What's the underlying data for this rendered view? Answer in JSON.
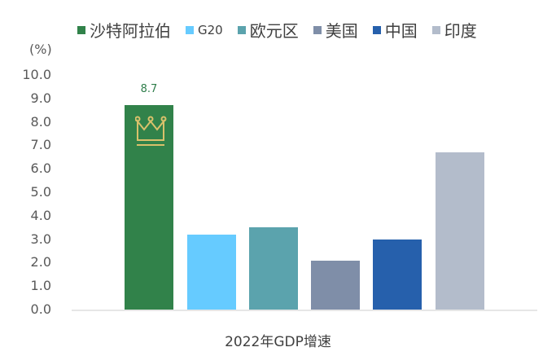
{
  "chart_data": {
    "type": "bar",
    "title": "",
    "xlabel": "2022年GDP增速",
    "ylabel": "(%)",
    "ylim": [
      0,
      10
    ],
    "yticks": [
      "0.0",
      "1.0",
      "2.0",
      "3.0",
      "4.0",
      "5.0",
      "6.0",
      "7.0",
      "8.0",
      "9.0",
      "10.0"
    ],
    "grid": false,
    "legend_position": "top",
    "categories": [
      "沙特阿拉伯",
      "G20",
      "欧元区",
      "美国",
      "中国",
      "印度"
    ],
    "values": [
      8.7,
      3.2,
      3.5,
      2.1,
      3.0,
      6.7
    ],
    "colors": [
      "#31824a",
      "#66cbff",
      "#5ba3ad",
      "#7f8ea8",
      "#2660ac",
      "#b3bccb"
    ],
    "data_labels": [
      {
        "category": "沙特阿拉伯",
        "text": "8.7"
      }
    ],
    "annotations": [
      {
        "category": "沙特阿拉伯",
        "icon": "crown-icon",
        "color": "#d9c16b"
      }
    ]
  },
  "legend": [
    {
      "label": "沙特阿拉伯",
      "color": "#31824a"
    },
    {
      "label": "G20",
      "color": "#66cbff"
    },
    {
      "label": "欧元区",
      "color": "#5ba3ad"
    },
    {
      "label": "美国",
      "color": "#7f8ea8"
    },
    {
      "label": "中国",
      "color": "#2660ac"
    },
    {
      "label": "印度",
      "color": "#b3bccb"
    }
  ],
  "unit": "(%)",
  "xlabel": "2022年GDP增速",
  "top_label": "8.7"
}
